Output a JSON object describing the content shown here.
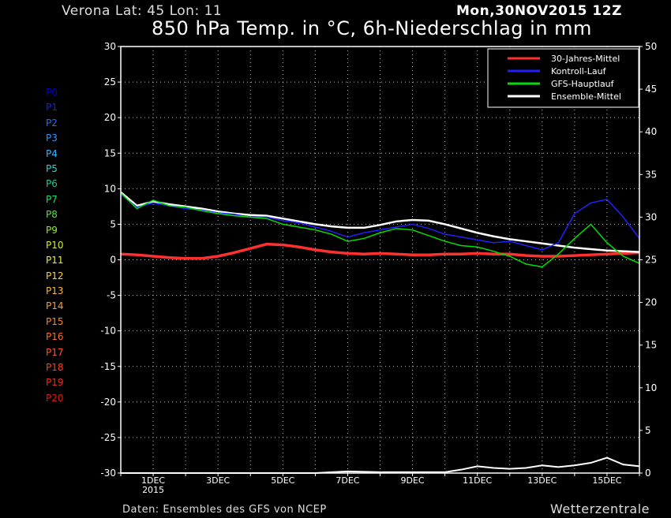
{
  "header": {
    "location": "Verona  Lat: 45 Lon: 11",
    "run": "Mon,30NOV2015 12Z",
    "title": "850 hPa Temp. in °C, 6h-Niederschlag in mm"
  },
  "footer": {
    "source": "Daten: Ensembles des GFS von NCEP",
    "brand": "Wetterzentrale"
  },
  "colors": {
    "background": "#000000",
    "frame": "#ffffff",
    "climatology": "#ff3030",
    "control": "#2020ff",
    "gfs_main": "#00dd00",
    "ensemble_mean": "#ffffff"
  },
  "chart_data": {
    "type": "line",
    "title": "850 hPa Temp. in °C, 6h-Niederschlag in mm",
    "y_left_ticks": [
      "30",
      "25",
      "20",
      "15",
      "10",
      "5",
      "0",
      "-5",
      "-10",
      "-15",
      "-20",
      "-25",
      "-30"
    ],
    "y_right_ticks": [
      "50",
      "45",
      "40",
      "35",
      "30",
      "25",
      "20",
      "15",
      "10",
      "5",
      "0"
    ],
    "x_tick_labels": [
      "1DEC",
      "3DEC",
      "5DEC",
      "7DEC",
      "9DEC",
      "11DEC",
      "13DEC",
      "15DEC"
    ],
    "x_tick_sublabel": "2015",
    "ylim_left": [
      -30,
      30
    ],
    "ylim_right": [
      0,
      50
    ],
    "xlim_days": [
      0,
      16
    ],
    "grid": true,
    "legend_position": "top-right",
    "legend": [
      {
        "name": "30-Jahres-Mittel",
        "color": "#ff3030"
      },
      {
        "name": "Kontroll-Lauf",
        "color": "#2020ff"
      },
      {
        "name": "GFS-Hauptlauf",
        "color": "#00dd00"
      },
      {
        "name": "Ensemble-Mittel",
        "color": "#ffffff"
      }
    ],
    "members": [
      {
        "name": "P0",
        "color": "#0000cc"
      },
      {
        "name": "P1",
        "color": "#1a1aff"
      },
      {
        "name": "P2",
        "color": "#1f6bff"
      },
      {
        "name": "P3",
        "color": "#2b95ff"
      },
      {
        "name": "P4",
        "color": "#2ab8ff"
      },
      {
        "name": "P5",
        "color": "#2fd0d8"
      },
      {
        "name": "P6",
        "color": "#1ec98a"
      },
      {
        "name": "P7",
        "color": "#22e05a"
      },
      {
        "name": "P8",
        "color": "#4ee83a"
      },
      {
        "name": "P9",
        "color": "#8fee2a"
      },
      {
        "name": "P10",
        "color": "#c8f22a"
      },
      {
        "name": "P11",
        "color": "#f2ee22"
      },
      {
        "name": "P12",
        "color": "#ffd02a"
      },
      {
        "name": "P13",
        "color": "#ffb42a"
      },
      {
        "name": "P14",
        "color": "#ff9a2a"
      },
      {
        "name": "P15",
        "color": "#ff8228"
      },
      {
        "name": "P16",
        "color": "#ff6a28"
      },
      {
        "name": "P17",
        "color": "#ff5224"
      },
      {
        "name": "P18",
        "color": "#ff3c1e"
      },
      {
        "name": "P19",
        "color": "#f02a1a"
      },
      {
        "name": "P20",
        "color": "#d81a14"
      }
    ],
    "temperature_series": [
      {
        "name": "30-Jahres-Mittel",
        "days": [
          0,
          0.5,
          1,
          1.5,
          2,
          2.5,
          3,
          3.5,
          4,
          4.5,
          5,
          5.5,
          6,
          6.5,
          7,
          7.5,
          8,
          8.5,
          9,
          9.5,
          10,
          10.5,
          11,
          11.5,
          12,
          12.5,
          13,
          13.5,
          14,
          14.5,
          15,
          15.5,
          16
        ],
        "values": [
          0.8,
          0.7,
          0.5,
          0.3,
          0.2,
          0.2,
          0.5,
          1,
          1.6,
          2.2,
          2.1,
          1.8,
          1.4,
          1.1,
          0.9,
          0.8,
          0.9,
          0.8,
          0.7,
          0.7,
          0.8,
          0.8,
          0.9,
          0.8,
          0.8,
          0.6,
          0.5,
          0.5,
          0.6,
          0.7,
          0.8,
          0.9,
          1.0
        ]
      },
      {
        "name": "Ensemble-Mittel",
        "days": [
          0,
          0.5,
          1,
          1.5,
          2,
          2.5,
          3,
          3.5,
          4,
          4.5,
          5,
          5.5,
          6,
          6.5,
          7,
          7.5,
          8,
          8.5,
          9,
          9.5,
          10,
          10.5,
          11,
          11.5,
          12,
          12.5,
          13,
          13.5,
          14,
          14.5,
          15,
          15.5,
          16
        ],
        "values": [
          9.5,
          7.6,
          8.2,
          7.8,
          7.5,
          7.2,
          6.8,
          6.5,
          6.3,
          6.2,
          5.8,
          5.4,
          5.0,
          4.7,
          4.5,
          4.5,
          4.9,
          5.4,
          5.6,
          5.5,
          5.0,
          4.4,
          3.8,
          3.3,
          2.9,
          2.6,
          2.3,
          2.0,
          1.7,
          1.5,
          1.3,
          1.2,
          1.1
        ]
      },
      {
        "name": "Kontroll-Lauf",
        "days": [
          0,
          0.5,
          1,
          1.5,
          2,
          2.5,
          3,
          3.5,
          4,
          4.5,
          5,
          5.5,
          6,
          6.5,
          7,
          7.5,
          8,
          8.5,
          9,
          9.5,
          10,
          10.5,
          11,
          11.5,
          12,
          12.5,
          13,
          13.5,
          14,
          14.5,
          15,
          15.5,
          16
        ],
        "values": [
          9.2,
          7.4,
          8.0,
          7.6,
          7.2,
          7.0,
          6.6,
          6.4,
          6.0,
          6.0,
          5.5,
          5.2,
          4.6,
          4.0,
          3.2,
          3.8,
          4.2,
          4.6,
          5.0,
          4.4,
          3.6,
          3.2,
          2.8,
          2.4,
          2.6,
          2.0,
          1.4,
          2.4,
          6.5,
          8.0,
          8.5,
          6.0,
          3.0
        ]
      },
      {
        "name": "GFS-Hauptlauf",
        "days": [
          0,
          0.5,
          1,
          1.5,
          2,
          2.5,
          3,
          3.5,
          4,
          4.5,
          5,
          5.5,
          6,
          6.5,
          7,
          7.5,
          8,
          8.5,
          9,
          9.5,
          10,
          10.5,
          11,
          11.5,
          12,
          12.5,
          13,
          13.5,
          14,
          14.5,
          15,
          15.5,
          16
        ],
        "values": [
          9.4,
          7.2,
          8.4,
          7.6,
          7.4,
          6.9,
          6.5,
          6.2,
          6.0,
          5.8,
          5.0,
          4.6,
          4.2,
          3.6,
          2.6,
          3.0,
          3.8,
          4.4,
          4.2,
          3.4,
          2.6,
          2.0,
          1.8,
          1.2,
          0.5,
          -0.6,
          -1.0,
          0.8,
          3.0,
          5.0,
          2.4,
          0.5,
          -0.5
        ]
      }
    ],
    "precip_series": [
      {
        "name": "Ensemble-Mittel",
        "days": [
          0,
          2,
          4,
          6,
          7,
          8,
          9,
          10,
          10.5,
          11,
          11.5,
          12,
          12.5,
          13,
          13.5,
          14,
          14.5,
          15,
          15.5,
          16
        ],
        "values": [
          0,
          0,
          0,
          0,
          0.2,
          0.1,
          0.1,
          0.1,
          0.4,
          0.8,
          0.6,
          0.5,
          0.6,
          0.9,
          0.7,
          0.9,
          1.2,
          1.8,
          1.0,
          0.8
        ]
      }
    ]
  }
}
